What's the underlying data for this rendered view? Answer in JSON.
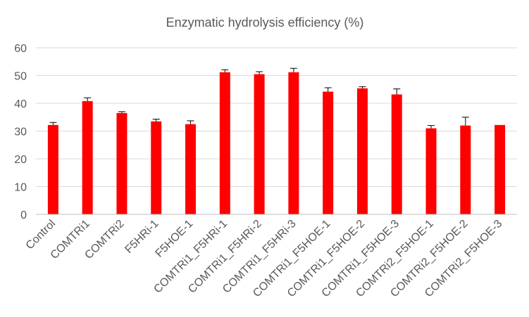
{
  "chart_data": {
    "type": "bar",
    "title": "Enzymatic hydrolysis efficiency (%)",
    "xlabel": "",
    "ylabel": "",
    "ylim": [
      0,
      60
    ],
    "yticks": [
      0,
      10,
      20,
      30,
      40,
      50,
      60
    ],
    "grid": true,
    "legend": "none",
    "bar_color": "#ff0000",
    "categories": [
      "Control",
      "COMTRi1",
      "COMTRi2",
      "F5HRi-1",
      "F5HOE-1",
      "COMTRi1_F5HRi-1",
      "COMTRi1_F5HRi-2",
      "COMTRi1_F5HRi-3",
      "COMTRi1_F5HOE-1",
      "COMTRi1_F5HOE-2",
      "COMTRi1_F5HOE-3",
      "COMTRi2_F5HOE-1",
      "COMTRi2_F5HOE-2",
      "COMTRi2_F5HOE-3"
    ],
    "values": [
      32.2,
      40.8,
      36.5,
      33.5,
      32.5,
      51.2,
      50.5,
      51.2,
      44.2,
      45.4,
      43.2,
      31.0,
      32.0,
      32.2
    ],
    "errors": [
      0.9,
      1.2,
      0.5,
      0.8,
      1.2,
      0.9,
      0.9,
      1.4,
      1.4,
      0.6,
      2.0,
      1.0,
      3.0,
      0.0
    ]
  }
}
